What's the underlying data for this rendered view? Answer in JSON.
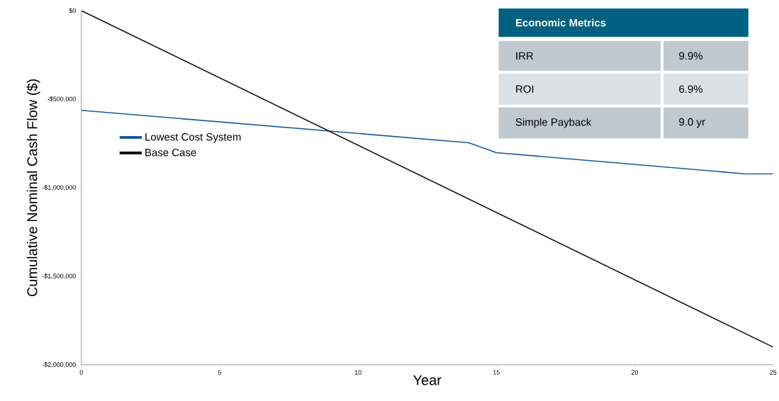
{
  "chart_data": {
    "type": "line",
    "xlabel": "Year",
    "ylabel": "Cumulative Nominal Cash Flow ($)",
    "xlim": [
      0,
      25
    ],
    "xticks": [
      0,
      5,
      10,
      15,
      20,
      25
    ],
    "ylim": [
      -2000000,
      0
    ],
    "yticks": [
      {
        "value": -2000000,
        "label": "-$2,000,000"
      },
      {
        "value": -1500000,
        "label": "-$1,500,000"
      },
      {
        "value": -1000000,
        "label": "-$1,000,000"
      },
      {
        "value": -500000,
        "label": "-$500,000"
      },
      {
        "value": 0,
        "label": "$0"
      }
    ],
    "legend": "left",
    "series": [
      {
        "name": "Lowest Cost System",
        "color": "#1a5a9a",
        "x": [
          0,
          14,
          15,
          24,
          25
        ],
        "values": [
          -563000,
          -746000,
          -802000,
          -922000,
          -922000
        ]
      },
      {
        "name": "Base Case",
        "color": "#111111",
        "x": [
          0,
          25
        ],
        "values": [
          0,
          -1900000
        ]
      }
    ],
    "annotations": [
      "Economic Metrics",
      "IRR",
      "9.9%",
      "ROI",
      "6.9%",
      "Simple Payback",
      "9.0 yr"
    ]
  }
}
